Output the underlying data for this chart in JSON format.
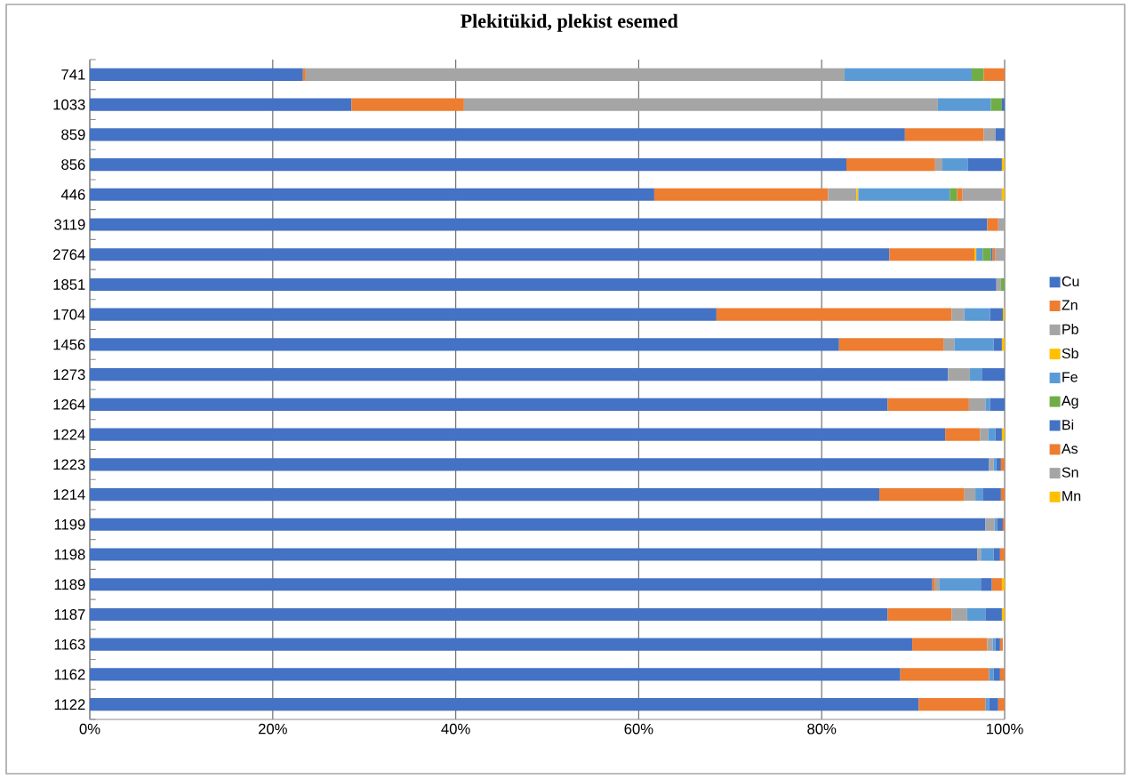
{
  "chart_data": {
    "type": "bar",
    "orientation": "horizontal",
    "stacked": true,
    "title": "Plekitükid, plekist esemed",
    "categories": [
      "741",
      "1033",
      "859",
      "856",
      "446",
      "3119",
      "2764",
      "1851",
      "1704",
      "1456",
      "1273",
      "1264",
      "1224",
      "1223",
      "1214",
      "1199",
      "1198",
      "1189",
      "1187",
      "1163",
      "1162",
      "1122"
    ],
    "series": [
      {
        "name": "Cu",
        "color": "#4472c4",
        "values": [
          23.3,
          28.6,
          89.1,
          82.7,
          61.7,
          98.1,
          87.4,
          99.1,
          68.5,
          81.9,
          93.8,
          87.2,
          93.5,
          98.3,
          86.3,
          97.9,
          97.0,
          92.1,
          87.2,
          89.9,
          88.6,
          90.6
        ]
      },
      {
        "name": "Zn",
        "color": "#ed7d31",
        "values": [
          0.3,
          12.3,
          8.6,
          9.7,
          19.0,
          1.2,
          9.3,
          null,
          25.7,
          11.4,
          null,
          8.9,
          3.8,
          null,
          9.3,
          null,
          null,
          0.3,
          7.0,
          8.2,
          9.7,
          7.3
        ]
      },
      {
        "name": "Pb",
        "color": "#a5a5a5",
        "values": [
          58.9,
          51.8,
          1.3,
          0.8,
          3.1,
          0.7,
          null,
          0.5,
          1.4,
          1.2,
          2.4,
          1.8,
          0.9,
          0.5,
          1.2,
          1.0,
          0.4,
          0.5,
          1.7,
          0.6,
          null,
          null
        ]
      },
      {
        "name": "Sb",
        "color": "#ffc000",
        "values": [
          null,
          null,
          null,
          null,
          0.2,
          null,
          0.2,
          null,
          null,
          null,
          null,
          null,
          null,
          null,
          null,
          null,
          null,
          null,
          null,
          null,
          null,
          null
        ]
      },
      {
        "name": "Fe",
        "color": "#5b9bd5",
        "values": [
          13.9,
          5.8,
          null,
          2.8,
          10.0,
          null,
          0.7,
          null,
          2.8,
          4.3,
          1.3,
          0.5,
          0.8,
          0.3,
          0.8,
          0.3,
          1.4,
          4.5,
          2.0,
          0.3,
          0.5,
          0.4
        ]
      },
      {
        "name": "Ag",
        "color": "#70ad47",
        "values": [
          1.3,
          1.2,
          null,
          null,
          0.8,
          null,
          0.9,
          0.4,
          null,
          null,
          null,
          null,
          null,
          null,
          null,
          null,
          null,
          null,
          null,
          null,
          null,
          null
        ]
      },
      {
        "name": "Bi",
        "color": "#4472c4",
        "values": [
          null,
          0.3,
          1.0,
          3.7,
          null,
          null,
          0.2,
          null,
          1.4,
          0.9,
          2.5,
          1.6,
          0.7,
          0.5,
          2.0,
          0.6,
          0.7,
          1.2,
          1.8,
          0.5,
          0.7,
          1.0
        ]
      },
      {
        "name": "As",
        "color": "#ed7d31",
        "values": [
          2.3,
          null,
          null,
          null,
          0.6,
          null,
          0.3,
          null,
          null,
          null,
          null,
          null,
          null,
          0.4,
          0.4,
          0.2,
          0.5,
          1.1,
          null,
          0.3,
          0.5,
          0.7
        ]
      },
      {
        "name": "Sn",
        "color": "#a5a5a5",
        "values": [
          null,
          null,
          null,
          null,
          4.3,
          null,
          1.0,
          null,
          null,
          null,
          null,
          null,
          null,
          null,
          null,
          null,
          null,
          null,
          null,
          null,
          null,
          null
        ]
      },
      {
        "name": "Mn",
        "color": "#ffc000",
        "values": [
          null,
          null,
          null,
          0.3,
          0.3,
          null,
          null,
          null,
          0.2,
          0.3,
          null,
          null,
          0.3,
          null,
          null,
          null,
          null,
          0.3,
          0.3,
          null,
          null,
          null
        ]
      }
    ],
    "xlim": [
      0,
      100
    ],
    "xticks": [
      {
        "value": 0,
        "label": "0%"
      },
      {
        "value": 20,
        "label": "20%"
      },
      {
        "value": 40,
        "label": "40%"
      },
      {
        "value": 60,
        "label": "60%"
      },
      {
        "value": 80,
        "label": "80%"
      },
      {
        "value": 100,
        "label": "100%"
      }
    ],
    "grid": "x",
    "legend": "right"
  }
}
